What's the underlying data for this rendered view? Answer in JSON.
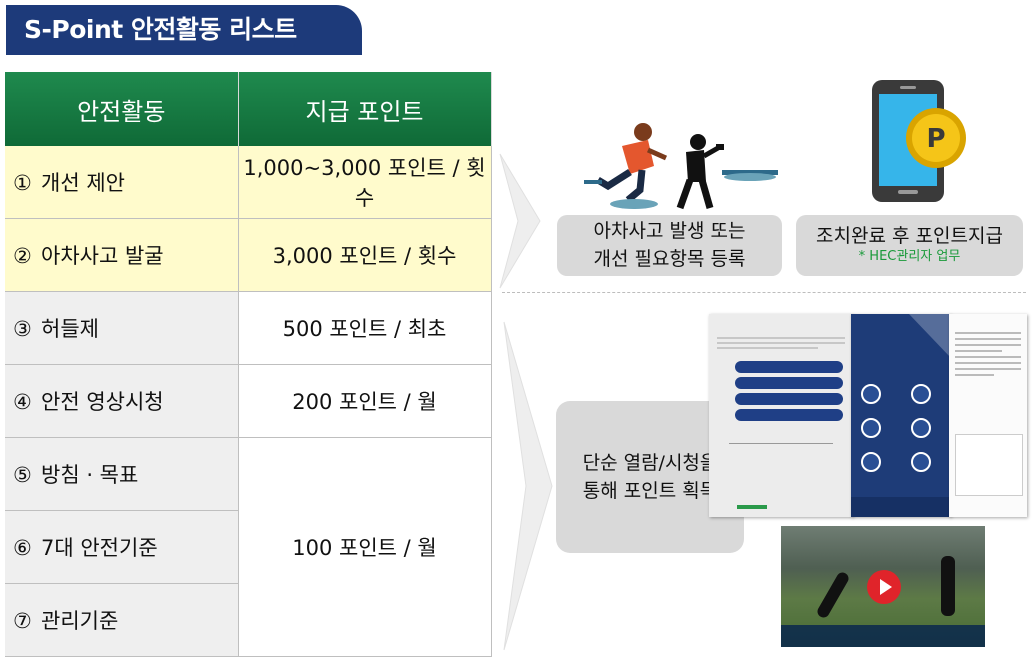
{
  "title": "S-Point 안전활동 리스트",
  "table": {
    "headers": [
      "안전활동",
      "지급 포인트"
    ],
    "rows": [
      {
        "num": "①",
        "activity": "개선 제안",
        "points": "1,000~3,000 포인트 / 횟수"
      },
      {
        "num": "②",
        "activity": "아차사고 발굴",
        "points": "3,000 포인트 / 횟수"
      },
      {
        "num": "③",
        "activity": "허들제",
        "points": "500 포인트 / 최초"
      },
      {
        "num": "④",
        "activity": "안전 영상시청",
        "points": "200 포인트 / 월"
      },
      {
        "num": "⑤",
        "activity": "방침 · 목표",
        "points": ""
      },
      {
        "num": "⑥",
        "activity": "7대 안전기준",
        "points": "100 포인트 / 월"
      },
      {
        "num": "⑦",
        "activity": "관리기준",
        "points": ""
      }
    ]
  },
  "flow": {
    "report_line1": "아차사고 발생 또는",
    "report_line2": "개선 필요항목 등록",
    "reward": "조치완료 후 포인트지급",
    "reward_note": "* HEC관리자 업무",
    "view_line1": "단순 열람/시청을",
    "view_line2": "통해 포인트 획득"
  },
  "colors": {
    "title_bg": "#1d3a7a",
    "header_green": "#1f8a4e",
    "highlight_rows": "#fffbcc",
    "gray_rows": "#efefef",
    "coin": "#f5c518",
    "phone": "#3a3a3a"
  },
  "icons": [
    "slip-person-icon",
    "photo-person-icon",
    "phone-coin-icon",
    "play-icon"
  ]
}
